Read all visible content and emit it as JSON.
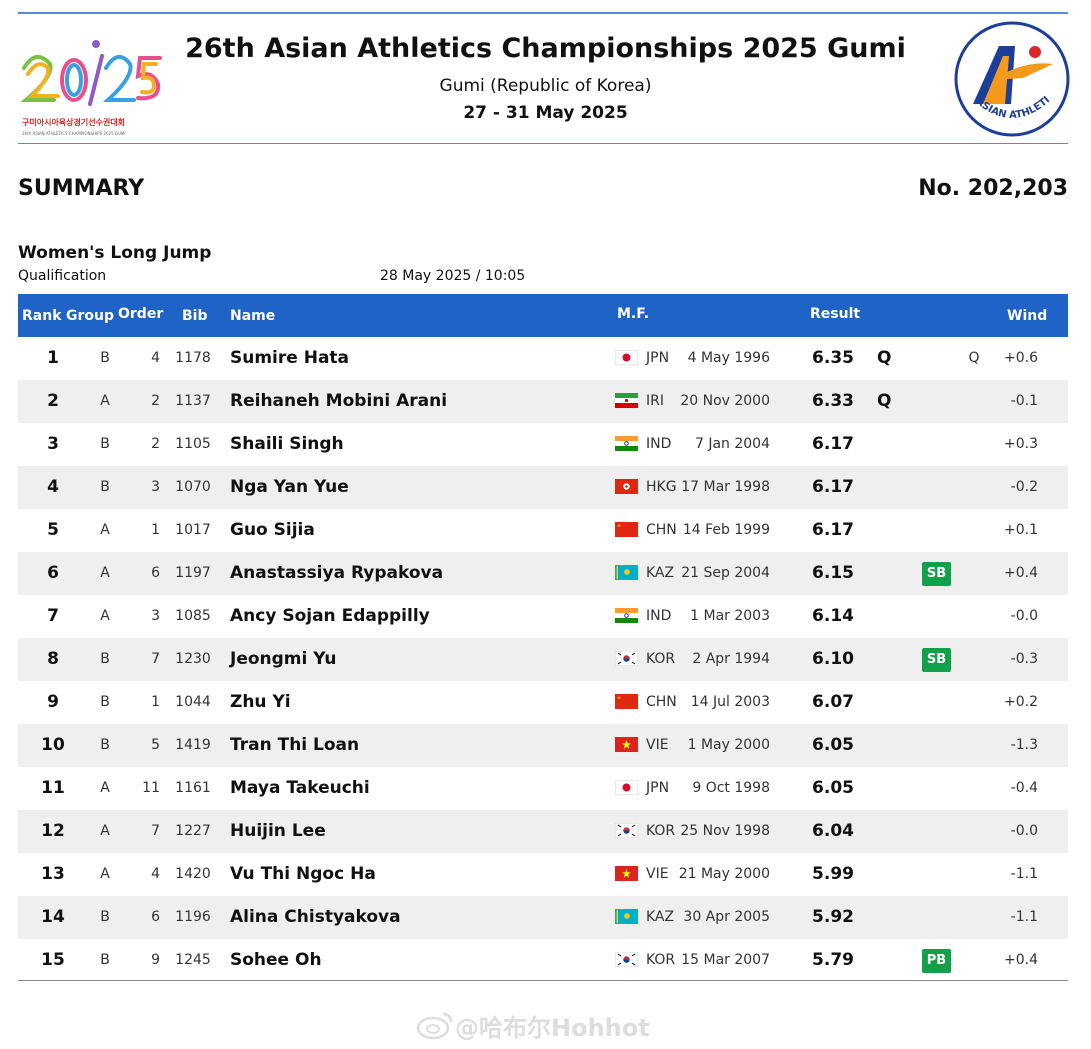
{
  "header": {
    "title": "26th Asian Athletics Championships 2025 Gumi",
    "location": "Gumi (Republic of Korea)",
    "dates": "27 - 31 May 2025",
    "left_logo": {
      "mark": "20/25",
      "line1": "구미아시아육상경기선수권대회",
      "line2": "26th ASIAN ATHLETICS CHAMPIONSHIPS 2025 GUMI"
    },
    "right_logo": {
      "text": "ASIAN ATHLETICS"
    }
  },
  "summary_label": "SUMMARY",
  "doc_number": "No. 202,203",
  "event": "Women's Long Jump",
  "round": "Qualification",
  "datetime": "28 May 2025 / 10:05",
  "columns": {
    "rank": "Rank",
    "group": "Group",
    "order": "Order",
    "bib": "Bib",
    "name": "Name",
    "mf": "M.F.",
    "result": "Result",
    "wind": "Wind"
  },
  "rows": [
    {
      "rank": "1",
      "group": "B",
      "order": "4",
      "bib": "1178",
      "name": "Sumire Hata",
      "nat": "JPN",
      "dob": "4 May 1996",
      "result": "6.35",
      "q": "Q",
      "q2": "Q",
      "record": "",
      "wind": "+0.6"
    },
    {
      "rank": "2",
      "group": "A",
      "order": "2",
      "bib": "1137",
      "name": "Reihaneh Mobini Arani",
      "nat": "IRI",
      "dob": "20 Nov 2000",
      "result": "6.33",
      "q": "Q",
      "q2": "",
      "record": "",
      "wind": "-0.1"
    },
    {
      "rank": "3",
      "group": "B",
      "order": "2",
      "bib": "1105",
      "name": "Shaili Singh",
      "nat": "IND",
      "dob": "7 Jan 2004",
      "result": "6.17",
      "q": "",
      "q2": "",
      "record": "",
      "wind": "+0.3"
    },
    {
      "rank": "4",
      "group": "B",
      "order": "3",
      "bib": "1070",
      "name": "Nga Yan Yue",
      "nat": "HKG",
      "dob": "17 Mar 1998",
      "result": "6.17",
      "q": "",
      "q2": "",
      "record": "",
      "wind": "-0.2"
    },
    {
      "rank": "5",
      "group": "A",
      "order": "1",
      "bib": "1017",
      "name": "Guo Sijia",
      "nat": "CHN",
      "dob": "14 Feb 1999",
      "result": "6.17",
      "q": "",
      "q2": "",
      "record": "",
      "wind": "+0.1"
    },
    {
      "rank": "6",
      "group": "A",
      "order": "6",
      "bib": "1197",
      "name": "Anastassiya Rypakova",
      "nat": "KAZ",
      "dob": "21 Sep 2004",
      "result": "6.15",
      "q": "",
      "q2": "",
      "record": "SB",
      "wind": "+0.4"
    },
    {
      "rank": "7",
      "group": "A",
      "order": "3",
      "bib": "1085",
      "name": "Ancy Sojan Edappilly",
      "nat": "IND",
      "dob": "1 Mar 2003",
      "result": "6.14",
      "q": "",
      "q2": "",
      "record": "",
      "wind": "-0.0"
    },
    {
      "rank": "8",
      "group": "B",
      "order": "7",
      "bib": "1230",
      "name": "Jeongmi Yu",
      "nat": "KOR",
      "dob": "2 Apr 1994",
      "result": "6.10",
      "q": "",
      "q2": "",
      "record": "SB",
      "wind": "-0.3"
    },
    {
      "rank": "9",
      "group": "B",
      "order": "1",
      "bib": "1044",
      "name": "Zhu Yi",
      "nat": "CHN",
      "dob": "14 Jul 2003",
      "result": "6.07",
      "q": "",
      "q2": "",
      "record": "",
      "wind": "+0.2"
    },
    {
      "rank": "10",
      "group": "B",
      "order": "5",
      "bib": "1419",
      "name": "Tran Thi Loan",
      "nat": "VIE",
      "dob": "1 May 2000",
      "result": "6.05",
      "q": "",
      "q2": "",
      "record": "",
      "wind": "-1.3"
    },
    {
      "rank": "11",
      "group": "A",
      "order": "11",
      "bib": "1161",
      "name": "Maya Takeuchi",
      "nat": "JPN",
      "dob": "9 Oct 1998",
      "result": "6.05",
      "q": "",
      "q2": "",
      "record": "",
      "wind": "-0.4"
    },
    {
      "rank": "12",
      "group": "A",
      "order": "7",
      "bib": "1227",
      "name": "Huijin Lee",
      "nat": "KOR",
      "dob": "25 Nov 1998",
      "result": "6.04",
      "q": "",
      "q2": "",
      "record": "",
      "wind": "-0.0"
    },
    {
      "rank": "13",
      "group": "A",
      "order": "4",
      "bib": "1420",
      "name": "Vu Thi Ngoc Ha",
      "nat": "VIE",
      "dob": "21 May 2000",
      "result": "5.99",
      "q": "",
      "q2": "",
      "record": "",
      "wind": "-1.1"
    },
    {
      "rank": "14",
      "group": "B",
      "order": "6",
      "bib": "1196",
      "name": "Alina Chistyakova",
      "nat": "KAZ",
      "dob": "30 Apr 2005",
      "result": "5.92",
      "q": "",
      "q2": "",
      "record": "",
      "wind": "-1.1"
    },
    {
      "rank": "15",
      "group": "B",
      "order": "9",
      "bib": "1245",
      "name": "Sohee Oh",
      "nat": "KOR",
      "dob": "15 Mar 2007",
      "result": "5.79",
      "q": "",
      "q2": "",
      "record": "PB",
      "wind": "+0.4"
    }
  ],
  "watermark": "@哈布尔Hohhot",
  "colors": {
    "header_blue": "#1f63c6",
    "rule_blue": "#4a90d9",
    "badge_green": "#13a04a",
    "row_alt": "#efefef"
  }
}
